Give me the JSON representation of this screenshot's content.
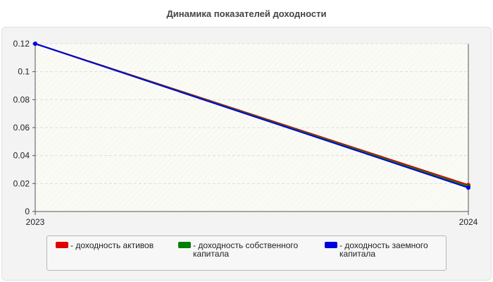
{
  "title": "Динамика показателей доходности",
  "chart_data": {
    "type": "line",
    "title": "Динамика показателей доходности",
    "x": [
      "2023",
      "2024"
    ],
    "ylim": [
      0,
      0.12
    ],
    "yticks": [
      "0",
      "0.02",
      "0.04",
      "0.06",
      "0.08",
      "0.1",
      "0.12"
    ],
    "grid": "horizontal dashed",
    "legend_position": "bottom",
    "series": [
      {
        "name": "- доходность активов",
        "color": "#e00000",
        "values": [
          0.12,
          0.019
        ]
      },
      {
        "name": "- доходность собственного капитала",
        "color": "#008000",
        "values": [
          0.12,
          0.018
        ]
      },
      {
        "name": "- доходность заемного капитала",
        "color": "#0000e0",
        "values": [
          0.12,
          0.017
        ]
      }
    ]
  }
}
